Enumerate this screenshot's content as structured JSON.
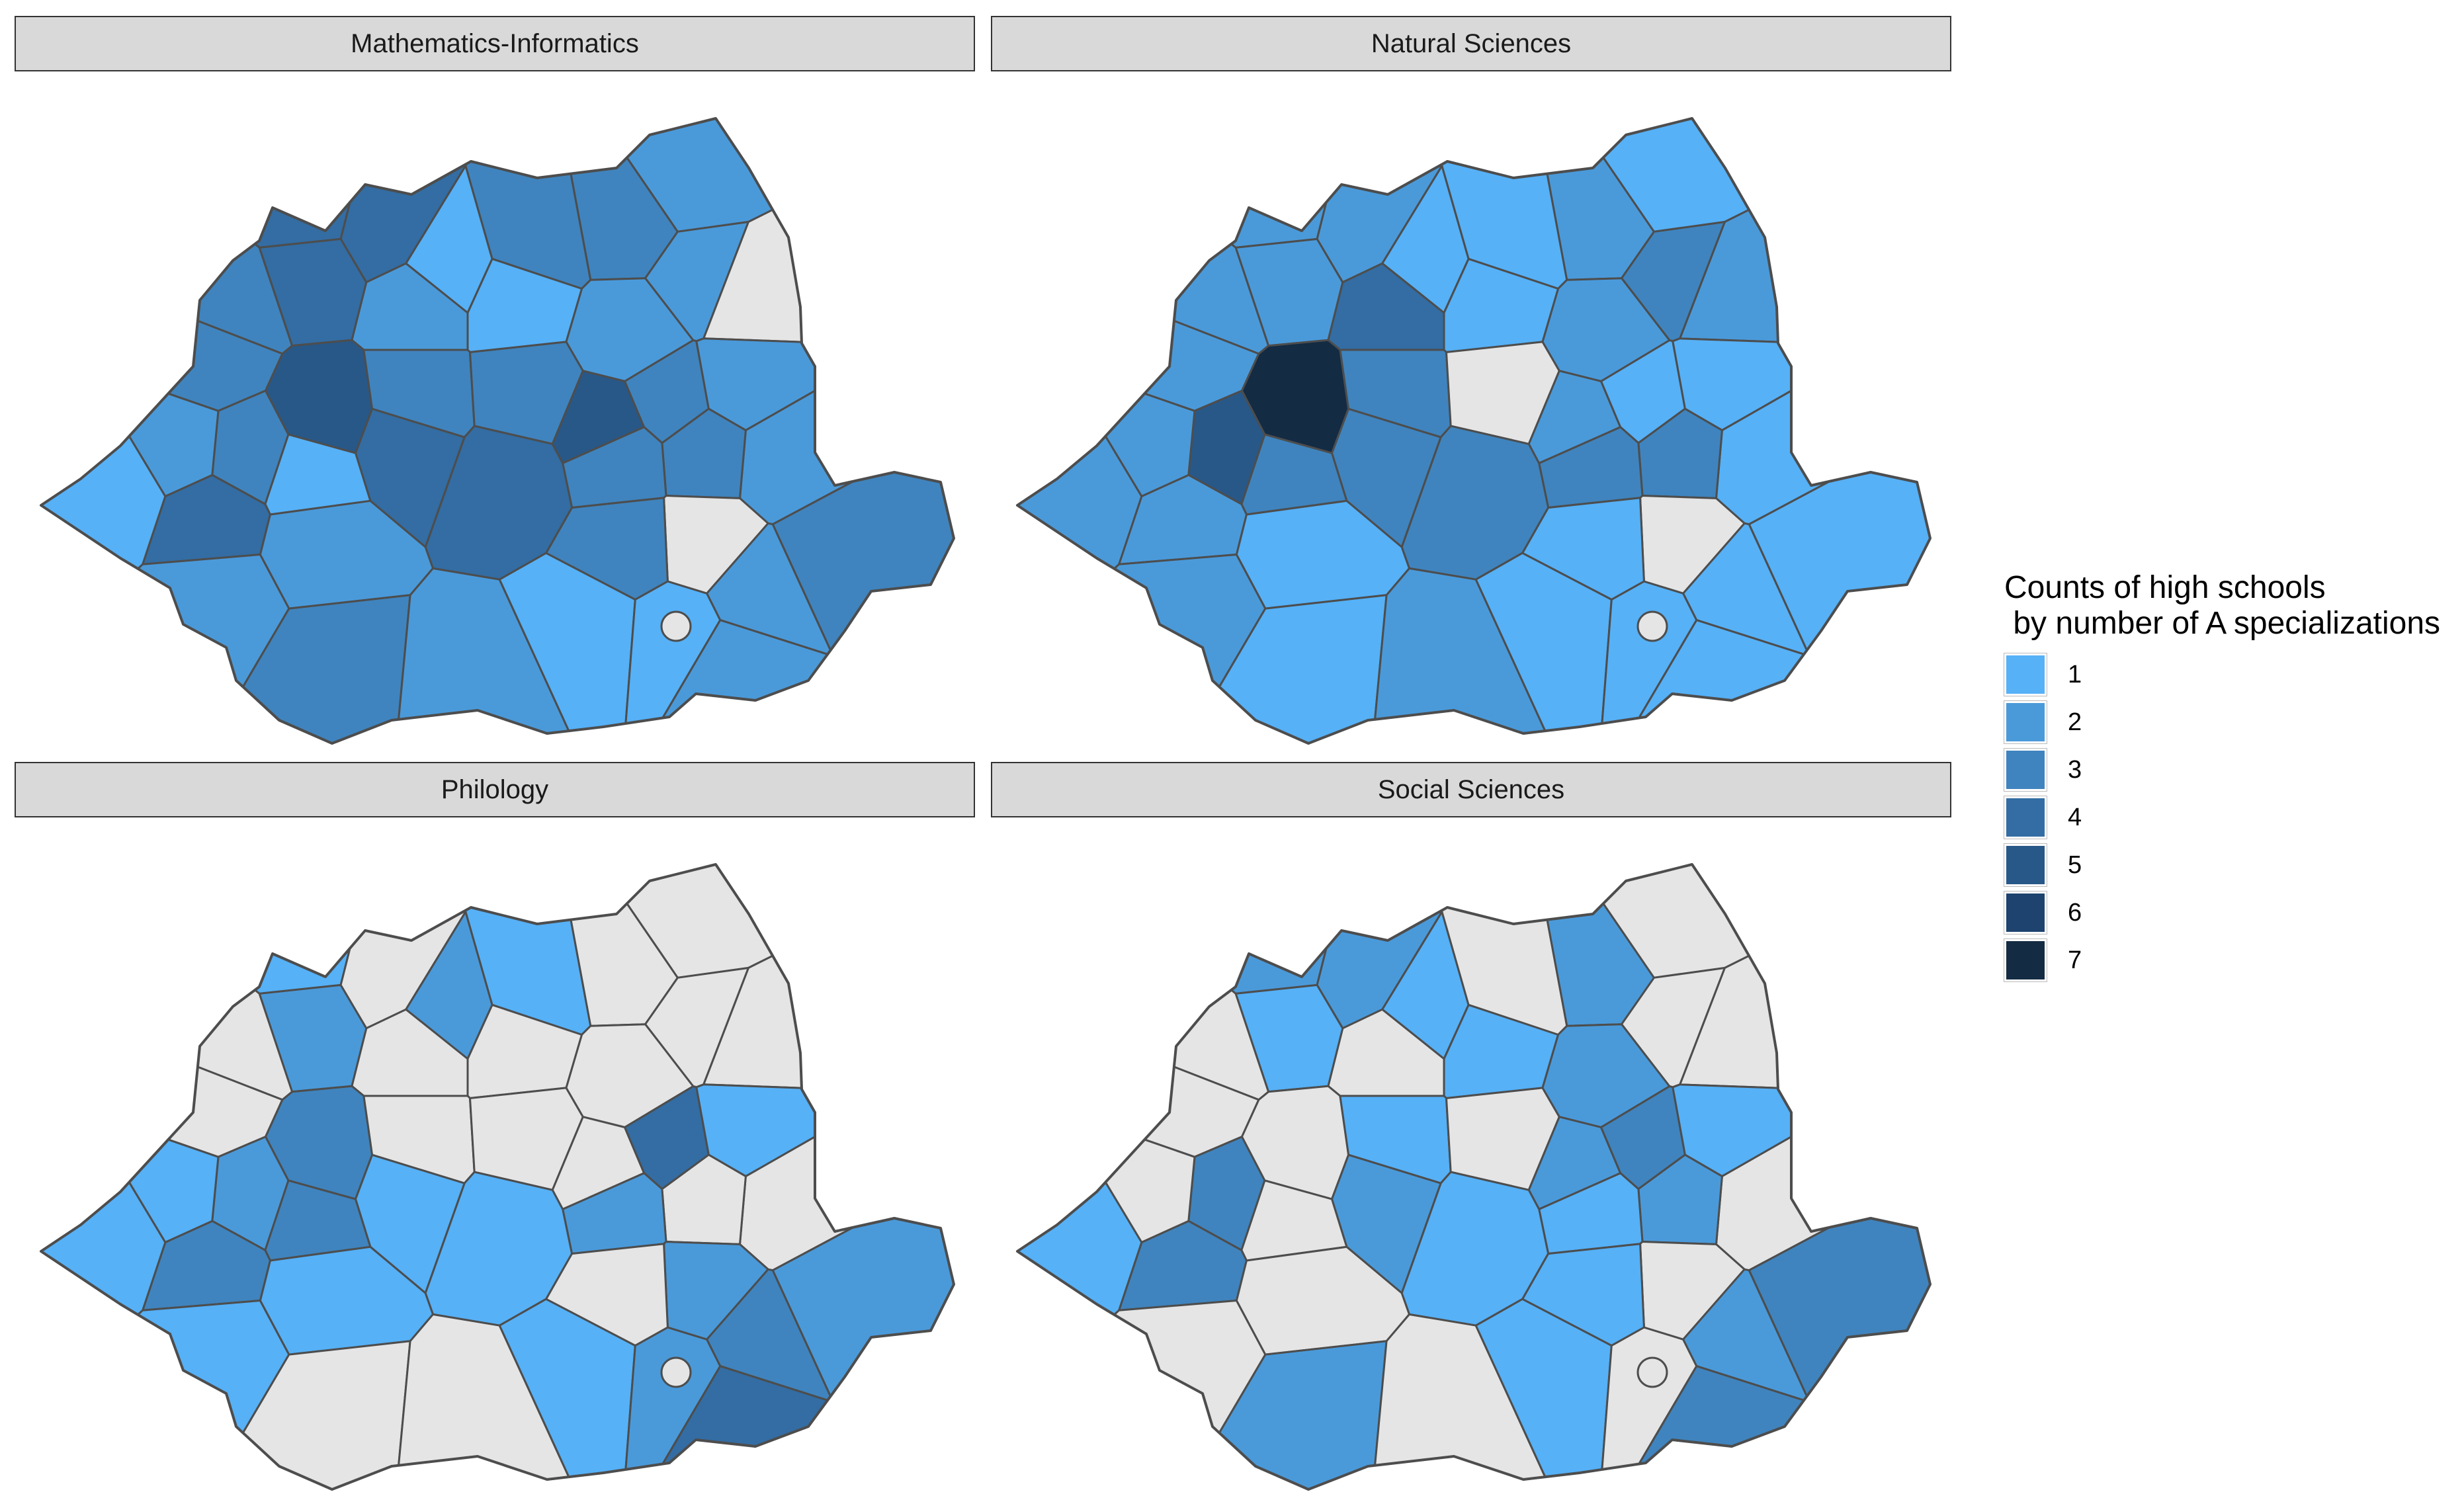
{
  "legend": {
    "title": "Counts of high schools\n by number of A specializations",
    "items": [
      {
        "label": "1",
        "value": 1,
        "color": "#56B1F7"
      },
      {
        "label": "2",
        "value": 2,
        "color": "#4A9ADA"
      },
      {
        "label": "3",
        "value": 3,
        "color": "#3F84BE"
      },
      {
        "label": "4",
        "value": 4,
        "color": "#336DA3"
      },
      {
        "label": "5",
        "value": 5,
        "color": "#285888"
      },
      {
        "label": "6",
        "value": 6,
        "color": "#1D436E"
      },
      {
        "label": "7",
        "value": 7,
        "color": "#132B43"
      }
    ],
    "na_color": "#E5E5E5"
  },
  "panels": [
    {
      "title": "Mathematics-Informatics",
      "values": [
        4,
        4,
        1,
        3,
        3,
        2,
        0,
        2,
        2,
        1,
        2,
        4,
        3,
        3,
        3,
        5,
        3,
        3,
        5,
        3,
        2,
        2,
        3,
        3,
        4,
        4,
        1,
        4,
        1,
        2,
        2,
        2,
        3,
        2,
        1,
        1,
        0,
        3,
        2,
        2,
        3
      ]
    },
    {
      "title": "Natural Sciences",
      "values": [
        2,
        2,
        1,
        1,
        2,
        1,
        2,
        3,
        2,
        1,
        4,
        2,
        2,
        2,
        5,
        7,
        3,
        0,
        2,
        1,
        1,
        1,
        3,
        3,
        3,
        3,
        3,
        2,
        2,
        2,
        2,
        1,
        1,
        2,
        1,
        1,
        0,
        1,
        1,
        1,
        1
      ]
    },
    {
      "title": "Philology",
      "values": [
        1,
        0,
        2,
        1,
        0,
        0,
        0,
        0,
        0,
        0,
        0,
        2,
        0,
        0,
        2,
        3,
        0,
        0,
        0,
        4,
        1,
        0,
        0,
        2,
        1,
        1,
        3,
        3,
        1,
        1,
        1,
        1,
        0,
        0,
        1,
        2,
        2,
        2,
        3,
        4,
        0
      ]
    },
    {
      "title": "Social Sciences",
      "values": [
        2,
        2,
        1,
        0,
        2,
        0,
        0,
        0,
        2,
        1,
        0,
        1,
        0,
        0,
        3,
        0,
        1,
        0,
        2,
        3,
        1,
        0,
        2,
        1,
        1,
        2,
        0,
        3,
        1,
        0,
        0,
        0,
        2,
        0,
        1,
        0,
        0,
        3,
        2,
        3,
        1
      ]
    }
  ]
}
